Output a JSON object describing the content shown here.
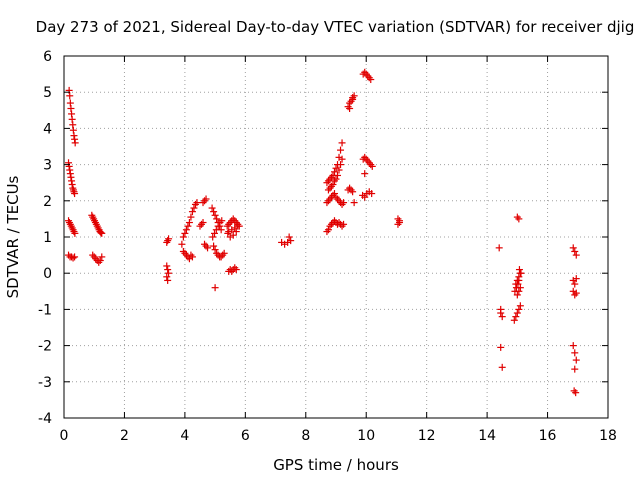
{
  "chart_data": {
    "type": "scatter",
    "title": "Day 273 of 2021, Sidereal Day-to-day VTEC variation (SDTVAR) for receiver djig",
    "xlabel": "GPS time / hours",
    "ylabel": "SDTVAR / TECUs",
    "xlim": [
      0,
      18
    ],
    "ylim": [
      -4,
      6
    ],
    "xticks": [
      0,
      2,
      4,
      6,
      8,
      10,
      12,
      14,
      16,
      18
    ],
    "yticks": [
      -4,
      -3,
      -2,
      -1,
      0,
      1,
      2,
      3,
      4,
      5,
      6
    ],
    "grid": true,
    "marker": "+",
    "color": "#e00000",
    "series": [
      {
        "name": "SDTVAR",
        "x": [
          0.17,
          0.19,
          0.21,
          0.23,
          0.25,
          0.27,
          0.29,
          0.31,
          0.33,
          0.35,
          0.37,
          0.15,
          0.17,
          0.19,
          0.21,
          0.23,
          0.25,
          0.27,
          0.29,
          0.31,
          0.33,
          0.35,
          0.15,
          0.18,
          0.21,
          0.24,
          0.27,
          0.3,
          0.33,
          0.36,
          0.15,
          0.2,
          0.25,
          0.3,
          0.35,
          0.92,
          0.95,
          0.98,
          1.01,
          1.04,
          1.07,
          1.1,
          1.13,
          1.16,
          1.19,
          1.22,
          1.25,
          0.95,
          1.0,
          1.05,
          1.1,
          1.15,
          1.2,
          1.25,
          3.4,
          3.43,
          3.46,
          3.4,
          3.43,
          3.46,
          3.4,
          3.43,
          3.9,
          3.95,
          4.0,
          4.05,
          4.1,
          4.15,
          4.2,
          4.25,
          4.3,
          4.35,
          4.4,
          3.95,
          4.0,
          4.05,
          4.1,
          4.15,
          4.2,
          4.25,
          4.5,
          4.55,
          4.6,
          4.65,
          4.7,
          4.75,
          4.7,
          4.65,
          4.6,
          4.9,
          4.95,
          5.0,
          5.05,
          5.1,
          5.15,
          5.2,
          4.92,
          4.98,
          5.04,
          5.1,
          5.16,
          5.22,
          4.95,
          5.0,
          5.05,
          5.1,
          5.15,
          5.2,
          5.25,
          5.3,
          5.0,
          5.4,
          5.45,
          5.5,
          5.55,
          5.6,
          5.65,
          5.7,
          5.75,
          5.8,
          5.45,
          5.55,
          5.65,
          5.75,
          5.45,
          5.5,
          5.55,
          5.6,
          5.65,
          5.7,
          5.42,
          5.5,
          5.6,
          5.7,
          7.2,
          7.3,
          7.4,
          7.45,
          7.5,
          8.7,
          8.75,
          8.8,
          8.85,
          8.9,
          8.95,
          9.0,
          9.05,
          9.1,
          9.15,
          9.2,
          8.75,
          8.8,
          8.85,
          8.9,
          8.95,
          9.0,
          9.05,
          9.1,
          9.15,
          9.2,
          8.7,
          8.75,
          8.8,
          8.85,
          8.9,
          8.95,
          9.0,
          9.05,
          9.1,
          9.15,
          9.2,
          9.25,
          8.7,
          8.75,
          8.8,
          8.85,
          8.9,
          8.95,
          9.0,
          9.05,
          9.1,
          9.15,
          9.2,
          9.25,
          9.4,
          9.45,
          9.5,
          9.55,
          9.6,
          9.45,
          9.55,
          9.4,
          9.45,
          9.5,
          9.55,
          9.6,
          9.9,
          9.95,
          10.0,
          10.05,
          10.1,
          10.15,
          9.9,
          9.95,
          10.0,
          10.05,
          10.1,
          10.15,
          10.2,
          9.88,
          9.95,
          10.02,
          10.1,
          10.18,
          9.95,
          11.05,
          11.1,
          11.05,
          11.1,
          14.4,
          14.45,
          14.45,
          14.5,
          14.45,
          14.5,
          14.9,
          14.95,
          15.0,
          15.05,
          15.1,
          15.0,
          15.05,
          15.1,
          14.95,
          15.0,
          15.05,
          15.1,
          14.92,
          14.97,
          15.02,
          15.07,
          15.12,
          15.05,
          15.0,
          15.05,
          16.85,
          16.9,
          16.95,
          16.85,
          16.9,
          16.95,
          16.85,
          16.9,
          16.95,
          16.85,
          16.9,
          16.95,
          16.9,
          16.88,
          16.93
        ],
        "y": [
          5.05,
          4.9,
          4.7,
          4.55,
          4.4,
          4.25,
          4.1,
          3.95,
          3.8,
          3.7,
          3.6,
          3.05,
          2.95,
          2.85,
          2.75,
          2.65,
          2.55,
          2.45,
          2.35,
          2.3,
          2.25,
          2.2,
          1.45,
          1.4,
          1.35,
          1.3,
          1.25,
          1.2,
          1.15,
          1.1,
          0.5,
          0.45,
          0.45,
          0.42,
          0.45,
          1.6,
          1.55,
          1.5,
          1.45,
          1.4,
          1.35,
          1.3,
          1.25,
          1.2,
          1.15,
          1.12,
          1.1,
          0.5,
          0.45,
          0.4,
          0.35,
          0.3,
          0.35,
          0.45,
          0.85,
          0.9,
          0.95,
          0.2,
          0.1,
          0.0,
          -0.1,
          -0.2,
          0.8,
          1.0,
          1.1,
          1.2,
          1.3,
          1.4,
          1.55,
          1.7,
          1.8,
          1.9,
          1.95,
          0.6,
          0.55,
          0.5,
          0.45,
          0.4,
          0.5,
          0.45,
          1.3,
          1.35,
          1.4,
          0.8,
          0.75,
          0.7,
          2.05,
          2.0,
          1.95,
          1.8,
          1.7,
          1.6,
          1.5,
          1.4,
          1.3,
          1.2,
          1.0,
          1.1,
          1.2,
          1.3,
          1.4,
          1.45,
          0.75,
          0.65,
          0.55,
          0.5,
          0.45,
          0.45,
          0.5,
          0.55,
          -0.4,
          1.3,
          1.35,
          1.4,
          1.45,
          1.5,
          1.45,
          1.4,
          1.35,
          1.3,
          1.15,
          1.2,
          1.25,
          1.3,
          0.05,
          0.1,
          0.05,
          0.1,
          0.15,
          0.1,
          1.1,
          1.0,
          1.05,
          1.15,
          0.85,
          0.8,
          0.85,
          1.0,
          0.9,
          2.5,
          2.55,
          2.6,
          2.65,
          2.7,
          2.8,
          2.9,
          3.0,
          3.2,
          3.4,
          3.6,
          2.3,
          2.35,
          2.4,
          2.45,
          2.55,
          2.6,
          2.7,
          2.85,
          3.0,
          3.15,
          1.95,
          2.0,
          2.05,
          2.1,
          2.15,
          2.2,
          2.1,
          2.05,
          2.0,
          1.95,
          1.9,
          1.95,
          1.15,
          1.2,
          1.3,
          1.35,
          1.4,
          1.45,
          1.4,
          1.35,
          1.4,
          1.35,
          1.3,
          1.35,
          4.6,
          4.7,
          4.75,
          4.8,
          4.9,
          4.55,
          4.85,
          2.3,
          2.35,
          2.3,
          2.25,
          1.95,
          5.5,
          5.55,
          5.5,
          5.45,
          5.4,
          5.35,
          3.15,
          3.2,
          3.15,
          3.1,
          3.05,
          3.0,
          2.95,
          2.15,
          2.1,
          2.2,
          2.25,
          2.2,
          2.75,
          1.5,
          1.45,
          1.35,
          1.4,
          0.7,
          -1.0,
          -1.1,
          -1.2,
          -2.05,
          -2.6,
          -1.3,
          -1.2,
          -1.1,
          -1.0,
          -0.9,
          -0.6,
          -0.5,
          -0.4,
          -0.3,
          -0.2,
          -0.1,
          0.0,
          -0.5,
          -0.4,
          -0.3,
          0.1,
          0.0,
          -0.2,
          1.55,
          1.5,
          0.7,
          0.6,
          0.5,
          -0.2,
          -0.3,
          -0.15,
          -0.5,
          -0.6,
          -0.55,
          -2.0,
          -2.2,
          -2.4,
          -2.65,
          -3.25,
          -3.3
        ]
      }
    ]
  }
}
